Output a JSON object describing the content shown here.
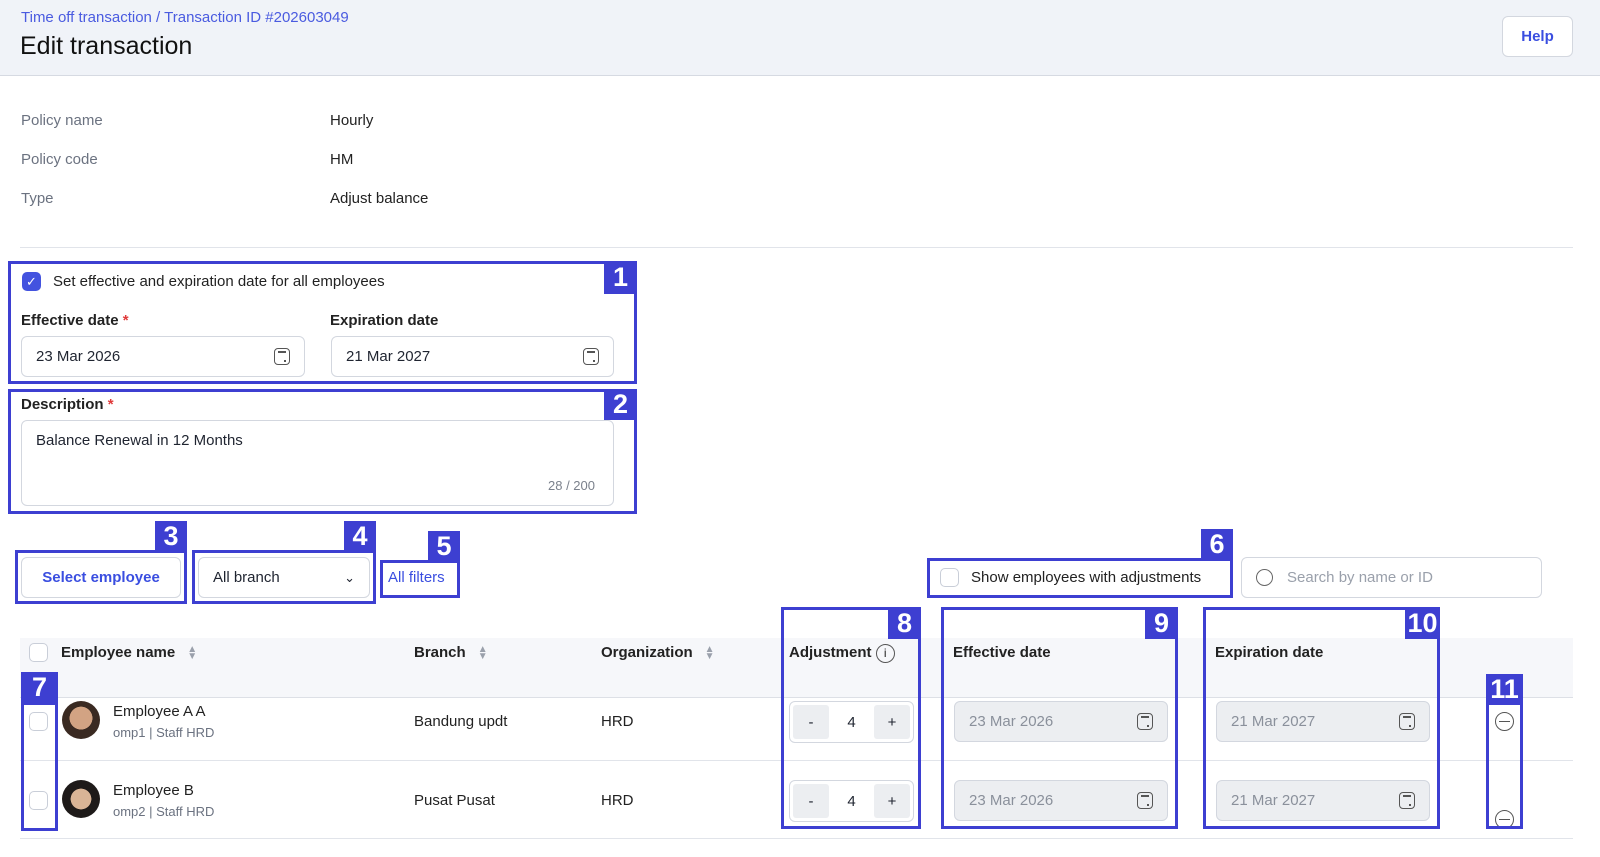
{
  "header": {
    "breadcrumb": "Time off transaction / Transaction ID #202603049",
    "title": "Edit transaction",
    "help_label": "Help"
  },
  "details": [
    {
      "label": "Policy name",
      "value": "Hourly"
    },
    {
      "label": "Policy code",
      "value": "HM"
    },
    {
      "label": "Type",
      "value": "Adjust balance"
    }
  ],
  "dates": {
    "checkbox_label": "Set effective and expiration date for all employees",
    "checked": true,
    "effective_label": "Effective date",
    "expiration_label": "Expiration date",
    "required_mark": "*",
    "effective_value": "23 Mar 2026",
    "expiration_value": "21 Mar 2027"
  },
  "description": {
    "label": "Description",
    "value": "Balance Renewal in 12 Months",
    "counter": "28 / 200"
  },
  "toolbar": {
    "select_employee": "Select employee",
    "branch_filter": "All branch",
    "all_filters": "All filters",
    "show_adjustments": "Show employees with adjustments",
    "search_placeholder": "Search by name or ID"
  },
  "table": {
    "headers": {
      "name": "Employee name",
      "branch": "Branch",
      "organization": "Organization",
      "adjustment": "Adjustment",
      "effective": "Effective date",
      "expiration": "Expiration date"
    },
    "rows": [
      {
        "name": "Employee A A",
        "sub": "omp1 | Staff HRD",
        "branch": "Bandung updt",
        "org": "HRD",
        "adjustment": "4",
        "effective": "23 Mar 2026",
        "expiration": "21 Mar 2027"
      },
      {
        "name": "Employee B",
        "sub": "omp2 | Staff HRD",
        "branch": "Pusat Pusat",
        "org": "HRD",
        "adjustment": "4",
        "effective": "23 Mar 2026",
        "expiration": "21 Mar 2027"
      }
    ]
  },
  "stepper": {
    "minus": "-",
    "plus": "+"
  },
  "annotations": [
    "1",
    "2",
    "3",
    "4",
    "5",
    "6",
    "7",
    "8",
    "9",
    "10",
    "11"
  ],
  "colors": {
    "accent": "#4353df",
    "annotation": "#3d3fd1"
  }
}
